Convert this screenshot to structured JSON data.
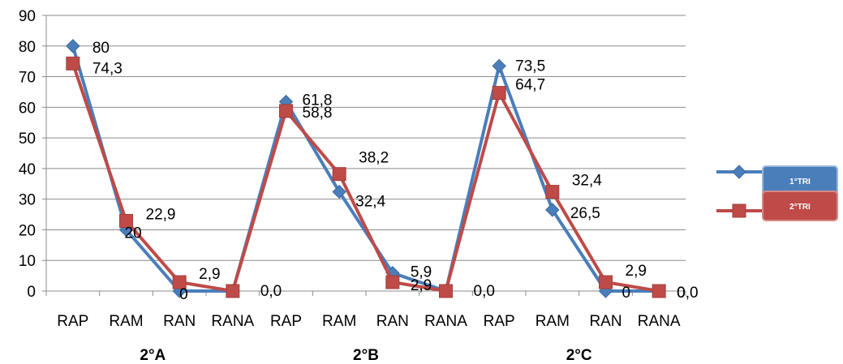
{
  "chart_data": {
    "type": "line",
    "categories": [
      "RAP",
      "RAM",
      "RAN",
      "RANA",
      "RAP",
      "RAM",
      "RAN",
      "RANA",
      "RAP",
      "RAM",
      "RAN",
      "RANA"
    ],
    "groups": [
      "2°A",
      "2°B",
      "2°C"
    ],
    "series": [
      {
        "name": "1°TRI",
        "color": "#4a7ebb",
        "marker": "diamond",
        "values": [
          80,
          20,
          0,
          0,
          61.8,
          32.4,
          5.9,
          0,
          73.5,
          26.5,
          0,
          0
        ],
        "labels": [
          "80",
          "20",
          "0",
          "",
          "61,8",
          "32,4",
          "5,9",
          "",
          "73,5",
          "26,5",
          "0",
          "0"
        ]
      },
      {
        "name": "2°TRI",
        "color": "#be4b48",
        "marker": "square",
        "values": [
          74.3,
          22.9,
          2.9,
          0,
          58.8,
          38.2,
          2.9,
          0,
          64.7,
          32.4,
          2.9,
          0
        ],
        "labels": [
          "74,3",
          "22,9",
          "2,9",
          "0,0",
          "58,8",
          "38,2",
          "2,9",
          "0,0",
          "64,7",
          "32,4",
          "2,9",
          "0,0"
        ]
      }
    ],
    "ylim": [
      0,
      90
    ],
    "yticks": [
      0,
      10,
      20,
      30,
      40,
      50,
      60,
      70,
      80,
      90
    ],
    "grid": true,
    "legend_position": "right",
    "title": "",
    "xlabel": "",
    "ylabel": ""
  }
}
